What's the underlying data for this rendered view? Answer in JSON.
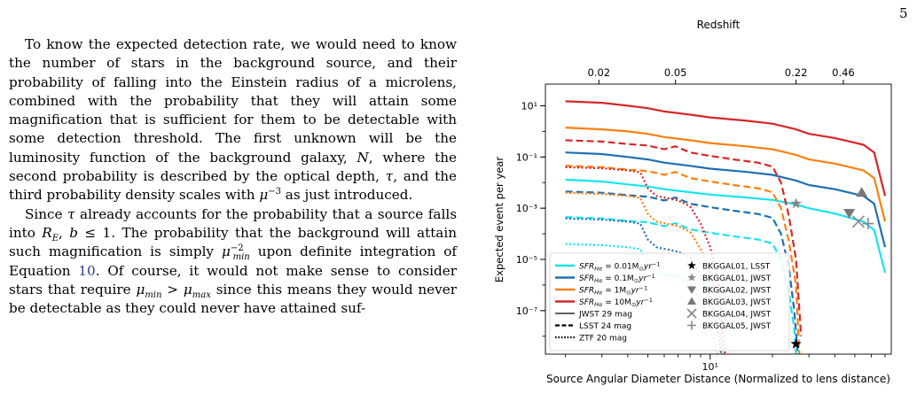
{
  "page_number": "5",
  "paragraphs": [
    "To know the expected detection rate, we would need to know the number of stars in the background source, and their probability of falling into the Einstein radius of a microlens, combined with the probability that they will attain some magnification that is sufficient for them to be detectable with some detection threshold. The first unknown will be the luminosity function of the background galaxy, N, where the second probability is described by the optical depth, τ, and the third probability density scales with μ⁻³ as just introduced.",
    "Since τ already accounts for the probability that a source falls into R_E, b ≤ 1. The probability that the background will attain such magnification is simply μ_min⁻² upon definite integration of Equation 10. Of course, it would not make sense to consider stars that require μ_min > μ_max since this means they would never be detectable as they could never have attained suf-"
  ],
  "para2_link": "10",
  "chart_data": {
    "type": "line",
    "xlabel": "Source Angular Diameter Distance (Normalized to lens distance)",
    "ylabel": "Expected event per year",
    "top_axis_label": "Redshift",
    "top_ticks": [
      {
        "label": "0.02",
        "x": 2.9
      },
      {
        "label": "0.05",
        "x": 6.8
      },
      {
        "label": "0.22",
        "x": 26.0
      },
      {
        "label": "0.46",
        "x": 44.0
      }
    ],
    "x_scale": "log",
    "y_scale": "log",
    "xlim": [
      1.6,
      75
    ],
    "ylim": [
      2e-09,
      70
    ],
    "x_tick_labels": [
      {
        "value": 10,
        "label": "10¹"
      }
    ],
    "y_tick_labels": [
      {
        "value": 10,
        "label": "10¹"
      },
      {
        "value": 0.1,
        "label": "10⁻¹"
      },
      {
        "value": 0.001,
        "label": "10⁻³"
      },
      {
        "value": 1e-05,
        "label": "10⁻⁵"
      },
      {
        "value": 1e-07,
        "label": "10⁻⁷"
      }
    ],
    "series": [
      {
        "color": "#17e4ee",
        "style": "solid",
        "points": [
          [
            2,
            0.013
          ],
          [
            3,
            0.011
          ],
          [
            4,
            0.0085
          ],
          [
            5,
            0.007
          ],
          [
            6,
            0.0055
          ],
          [
            8,
            0.0042
          ],
          [
            10,
            0.0034
          ],
          [
            15,
            0.0026
          ],
          [
            20,
            0.0021
          ],
          [
            26,
            0.0014
          ],
          [
            30,
            0.001
          ],
          [
            40,
            0.00062
          ],
          [
            55,
            0.0003
          ],
          [
            62,
            0.00014
          ],
          [
            70,
            3e-06
          ]
        ]
      },
      {
        "color": "#1f6fb2",
        "style": "solid",
        "points": [
          [
            2,
            0.15
          ],
          [
            3,
            0.13
          ],
          [
            4,
            0.1
          ],
          [
            5,
            0.08
          ],
          [
            6,
            0.06
          ],
          [
            8,
            0.045
          ],
          [
            10,
            0.035
          ],
          [
            15,
            0.026
          ],
          [
            20,
            0.02
          ],
          [
            26,
            0.012
          ],
          [
            30,
            0.008
          ],
          [
            40,
            0.0055
          ],
          [
            55,
            0.003
          ],
          [
            62,
            0.0015
          ],
          [
            70,
            3e-05
          ]
        ]
      },
      {
        "color": "#ff7f0e",
        "style": "solid",
        "points": [
          [
            2,
            1.4
          ],
          [
            3,
            1.2
          ],
          [
            4,
            1.0
          ],
          [
            5,
            0.8
          ],
          [
            6,
            0.6
          ],
          [
            8,
            0.45
          ],
          [
            10,
            0.35
          ],
          [
            15,
            0.26
          ],
          [
            20,
            0.2
          ],
          [
            26,
            0.12
          ],
          [
            30,
            0.08
          ],
          [
            40,
            0.055
          ],
          [
            55,
            0.03
          ],
          [
            62,
            0.015
          ],
          [
            70,
            0.0003
          ]
        ]
      },
      {
        "color": "#d62728",
        "style": "solid",
        "points": [
          [
            2,
            15
          ],
          [
            3,
            13
          ],
          [
            4,
            10
          ],
          [
            5,
            8
          ],
          [
            6,
            6
          ],
          [
            8,
            4.5
          ],
          [
            10,
            3.5
          ],
          [
            15,
            2.6
          ],
          [
            20,
            2.0
          ],
          [
            26,
            1.2
          ],
          [
            30,
            0.8
          ],
          [
            40,
            0.55
          ],
          [
            55,
            0.3
          ],
          [
            62,
            0.15
          ],
          [
            70,
            0.003
          ]
        ]
      },
      {
        "color": "#d62728",
        "style": "dashed",
        "points": [
          [
            2,
            0.45
          ],
          [
            3,
            0.4
          ],
          [
            4,
            0.32
          ],
          [
            5,
            0.28
          ],
          [
            6,
            0.2
          ],
          [
            6.8,
            0.26
          ],
          [
            8,
            0.15
          ],
          [
            10,
            0.11
          ],
          [
            13,
            0.08
          ],
          [
            17,
            0.06
          ],
          [
            20,
            0.042
          ],
          [
            22,
            0.01
          ],
          [
            24,
            0.0005
          ],
          [
            26,
            1e-05
          ],
          [
            27.5,
            1e-08
          ]
        ]
      },
      {
        "color": "#ff7f0e",
        "style": "dashed",
        "points": [
          [
            2,
            0.045
          ],
          [
            3,
            0.04
          ],
          [
            4,
            0.032
          ],
          [
            5,
            0.028
          ],
          [
            6,
            0.02
          ],
          [
            6.8,
            0.026
          ],
          [
            8,
            0.015
          ],
          [
            10,
            0.011
          ],
          [
            13,
            0.008
          ],
          [
            17,
            0.006
          ],
          [
            20,
            0.0042
          ],
          [
            22,
            0.001
          ],
          [
            24,
            5e-05
          ],
          [
            26,
            1e-06
          ],
          [
            27,
            2e-09
          ]
        ]
      },
      {
        "color": "#1f6fb2",
        "style": "dashed",
        "points": [
          [
            2,
            0.0045
          ],
          [
            3,
            0.004
          ],
          [
            4,
            0.0032
          ],
          [
            5,
            0.0028
          ],
          [
            6,
            0.002
          ],
          [
            6.8,
            0.0026
          ],
          [
            8,
            0.0015
          ],
          [
            10,
            0.0011
          ],
          [
            13,
            0.0008
          ],
          [
            17,
            0.0006
          ],
          [
            20,
            0.00042
          ],
          [
            22,
            0.0001
          ],
          [
            24,
            5e-06
          ],
          [
            25.5,
            1e-07
          ],
          [
            26.5,
            2e-09
          ]
        ]
      },
      {
        "color": "#17e4ee",
        "style": "dashed",
        "points": [
          [
            2,
            0.00045
          ],
          [
            3,
            0.0004
          ],
          [
            4,
            0.00032
          ],
          [
            5,
            0.00028
          ],
          [
            6,
            0.0002
          ],
          [
            6.8,
            0.00026
          ],
          [
            8,
            0.00015
          ],
          [
            10,
            0.00011
          ],
          [
            13,
            8e-05
          ],
          [
            17,
            6e-05
          ],
          [
            20,
            4.2e-05
          ],
          [
            22,
            1e-05
          ],
          [
            24,
            5e-07
          ],
          [
            25.5,
            2e-08
          ],
          [
            26,
            2e-09
          ]
        ]
      },
      {
        "color": "#d62728",
        "style": "dotted",
        "points": [
          [
            2,
            0.04
          ],
          [
            3,
            0.036
          ],
          [
            4,
            0.03
          ],
          [
            4.6,
            0.025
          ],
          [
            5,
            0.006
          ],
          [
            5.5,
            0.003
          ],
          [
            7,
            0.002
          ],
          [
            8,
            0.0012
          ],
          [
            9,
            0.00025
          ],
          [
            10,
            3e-05
          ],
          [
            11,
            1e-06
          ],
          [
            11.8,
            2e-09
          ]
        ]
      },
      {
        "color": "#ff7f0e",
        "style": "dotted",
        "points": [
          [
            2,
            0.004
          ],
          [
            3,
            0.0036
          ],
          [
            4,
            0.003
          ],
          [
            4.6,
            0.0025
          ],
          [
            5,
            0.0006
          ],
          [
            5.5,
            0.0003
          ],
          [
            7,
            0.0002
          ],
          [
            8,
            0.00012
          ],
          [
            9,
            2.5e-05
          ],
          [
            10,
            3e-06
          ],
          [
            11,
            1e-07
          ],
          [
            11.5,
            2e-09
          ]
        ]
      },
      {
        "color": "#1f6fb2",
        "style": "dotted",
        "points": [
          [
            2,
            0.0004
          ],
          [
            3,
            0.00036
          ],
          [
            4,
            0.0003
          ],
          [
            4.6,
            0.00025
          ],
          [
            5,
            6e-05
          ],
          [
            5.5,
            3e-05
          ],
          [
            7,
            2e-05
          ],
          [
            8,
            1.2e-05
          ],
          [
            9,
            2.5e-06
          ],
          [
            10,
            3e-07
          ],
          [
            11,
            1e-08
          ],
          [
            11.3,
            2e-09
          ]
        ]
      },
      {
        "color": "#17e4ee",
        "style": "dotted",
        "points": [
          [
            2,
            4e-05
          ],
          [
            3,
            3.6e-05
          ],
          [
            4,
            3e-05
          ],
          [
            4.6,
            2.5e-05
          ],
          [
            5,
            6e-06
          ],
          [
            5.5,
            3e-06
          ],
          [
            7,
            2e-06
          ],
          [
            8,
            1.2e-06
          ],
          [
            9,
            2.5e-07
          ],
          [
            10,
            3e-08
          ],
          [
            10.8,
            2e-09
          ]
        ]
      }
    ],
    "markers": [
      {
        "name": "BKGGAL01, LSST",
        "marker": "star",
        "color": "#000000",
        "x": 26.0,
        "y": 5e-09
      },
      {
        "name": "BKGGAL01, JWST",
        "marker": "star",
        "color": "#888888",
        "x": 26.0,
        "y": 0.0015
      },
      {
        "name": "BKGGAL02, JWST",
        "marker": "triangle-down",
        "color": "#777777",
        "x": 47.0,
        "y": 0.00065
      },
      {
        "name": "BKGGAL03, JWST",
        "marker": "triangle-up",
        "color": "#777777",
        "x": 54.0,
        "y": 0.004
      },
      {
        "name": "BKGGAL04, JWST",
        "marker": "x",
        "color": "#888888",
        "x": 52.0,
        "y": 0.0003
      },
      {
        "name": "BKGGAL05, JWST",
        "marker": "plus",
        "color": "#888888",
        "x": 58.0,
        "y": 0.00025
      }
    ],
    "legend": {
      "placement": "lower-left",
      "color_entries": [
        {
          "prefix": "SFR",
          "sub": "Hα",
          "value": " = 0.01M",
          "sun": "⊙",
          "unit": "yr",
          "exp": "−1",
          "color": "#17e4ee"
        },
        {
          "prefix": "SFR",
          "sub": "Hα",
          "value": " = 0.1M",
          "sun": "⊙",
          "unit": "yr",
          "exp": "−1",
          "color": "#1f6fb2"
        },
        {
          "prefix": "SFR",
          "sub": "Hα",
          "value": " = 1M",
          "sun": "⊙",
          "unit": "yr",
          "exp": "−1",
          "color": "#ff7f0e"
        },
        {
          "prefix": "SFR",
          "sub": "Hα",
          "value": " = 10M",
          "sun": "⊙",
          "unit": "yr",
          "exp": "−1",
          "color": "#d62728"
        }
      ],
      "style_entries": [
        {
          "label": "JWST 29 mag",
          "style": "solid"
        },
        {
          "label": "LSST 24 mag",
          "style": "dashed"
        },
        {
          "label": "ZTF 20 mag",
          "style": "dotted"
        }
      ]
    }
  }
}
